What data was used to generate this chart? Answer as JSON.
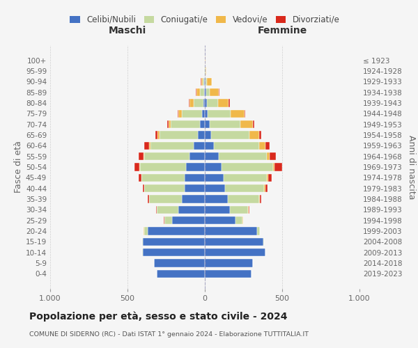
{
  "age_groups": [
    "0-4",
    "5-9",
    "10-14",
    "15-19",
    "20-24",
    "25-29",
    "30-34",
    "35-39",
    "40-44",
    "45-49",
    "50-54",
    "55-59",
    "60-64",
    "65-69",
    "70-74",
    "75-79",
    "80-84",
    "85-89",
    "90-94",
    "95-99",
    "100+"
  ],
  "birth_years": [
    "2019-2023",
    "2014-2018",
    "2009-2013",
    "2004-2008",
    "1999-2003",
    "1994-1998",
    "1989-1993",
    "1984-1988",
    "1979-1983",
    "1974-1978",
    "1969-1973",
    "1964-1968",
    "1959-1963",
    "1954-1958",
    "1949-1953",
    "1944-1948",
    "1939-1943",
    "1934-1938",
    "1929-1933",
    "1924-1928",
    "≤ 1923"
  ],
  "colors": {
    "celibi": "#4472c4",
    "coniugati": "#c5d9a0",
    "vedovi": "#f0b84a",
    "divorziati": "#d9291c"
  },
  "maschi": {
    "celibi": [
      310,
      330,
      400,
      400,
      370,
      210,
      170,
      150,
      130,
      130,
      120,
      100,
      70,
      45,
      30,
      20,
      10,
      5,
      3,
      2,
      2
    ],
    "coniugati": [
      0,
      0,
      5,
      5,
      20,
      50,
      140,
      210,
      260,
      280,
      300,
      290,
      280,
      250,
      190,
      130,
      60,
      25,
      10,
      2,
      0
    ],
    "vedovi": [
      0,
      0,
      0,
      0,
      5,
      2,
      2,
      2,
      2,
      2,
      5,
      5,
      10,
      10,
      15,
      20,
      30,
      25,
      10,
      2,
      0
    ],
    "divorziati": [
      0,
      0,
      0,
      0,
      0,
      2,
      5,
      8,
      10,
      15,
      30,
      35,
      30,
      15,
      8,
      5,
      5,
      5,
      2,
      0,
      0
    ]
  },
  "femmine": {
    "celibi": [
      300,
      310,
      390,
      380,
      340,
      200,
      160,
      150,
      130,
      120,
      110,
      90,
      60,
      40,
      30,
      20,
      15,
      8,
      5,
      2,
      2
    ],
    "coniugati": [
      0,
      0,
      3,
      5,
      15,
      45,
      120,
      200,
      255,
      280,
      330,
      310,
      290,
      250,
      200,
      145,
      70,
      25,
      10,
      2,
      0
    ],
    "vedovi": [
      0,
      0,
      0,
      0,
      3,
      2,
      2,
      5,
      5,
      8,
      10,
      20,
      40,
      60,
      80,
      90,
      70,
      55,
      30,
      5,
      2
    ],
    "divorziati": [
      0,
      0,
      0,
      0,
      0,
      2,
      5,
      10,
      15,
      25,
      50,
      40,
      30,
      15,
      10,
      5,
      5,
      5,
      2,
      0,
      0
    ]
  },
  "xlim": 1000,
  "title": "Popolazione per età, sesso e stato civile - 2024",
  "subtitle": "COMUNE DI SIDERNO (RC) - Dati ISTAT 1° gennaio 2024 - Elaborazione TUTTITALIA.IT",
  "xlabel_left": "Maschi",
  "xlabel_right": "Femmine",
  "ylabel": "Fasce di età",
  "ylabel_right": "Anni di nascita",
  "legend_labels": [
    "Celibi/Nubili",
    "Coniugati/e",
    "Vedovi/e",
    "Divorziati/e"
  ],
  "bg_color": "#f5f5f5",
  "grid_color": "#cccccc"
}
